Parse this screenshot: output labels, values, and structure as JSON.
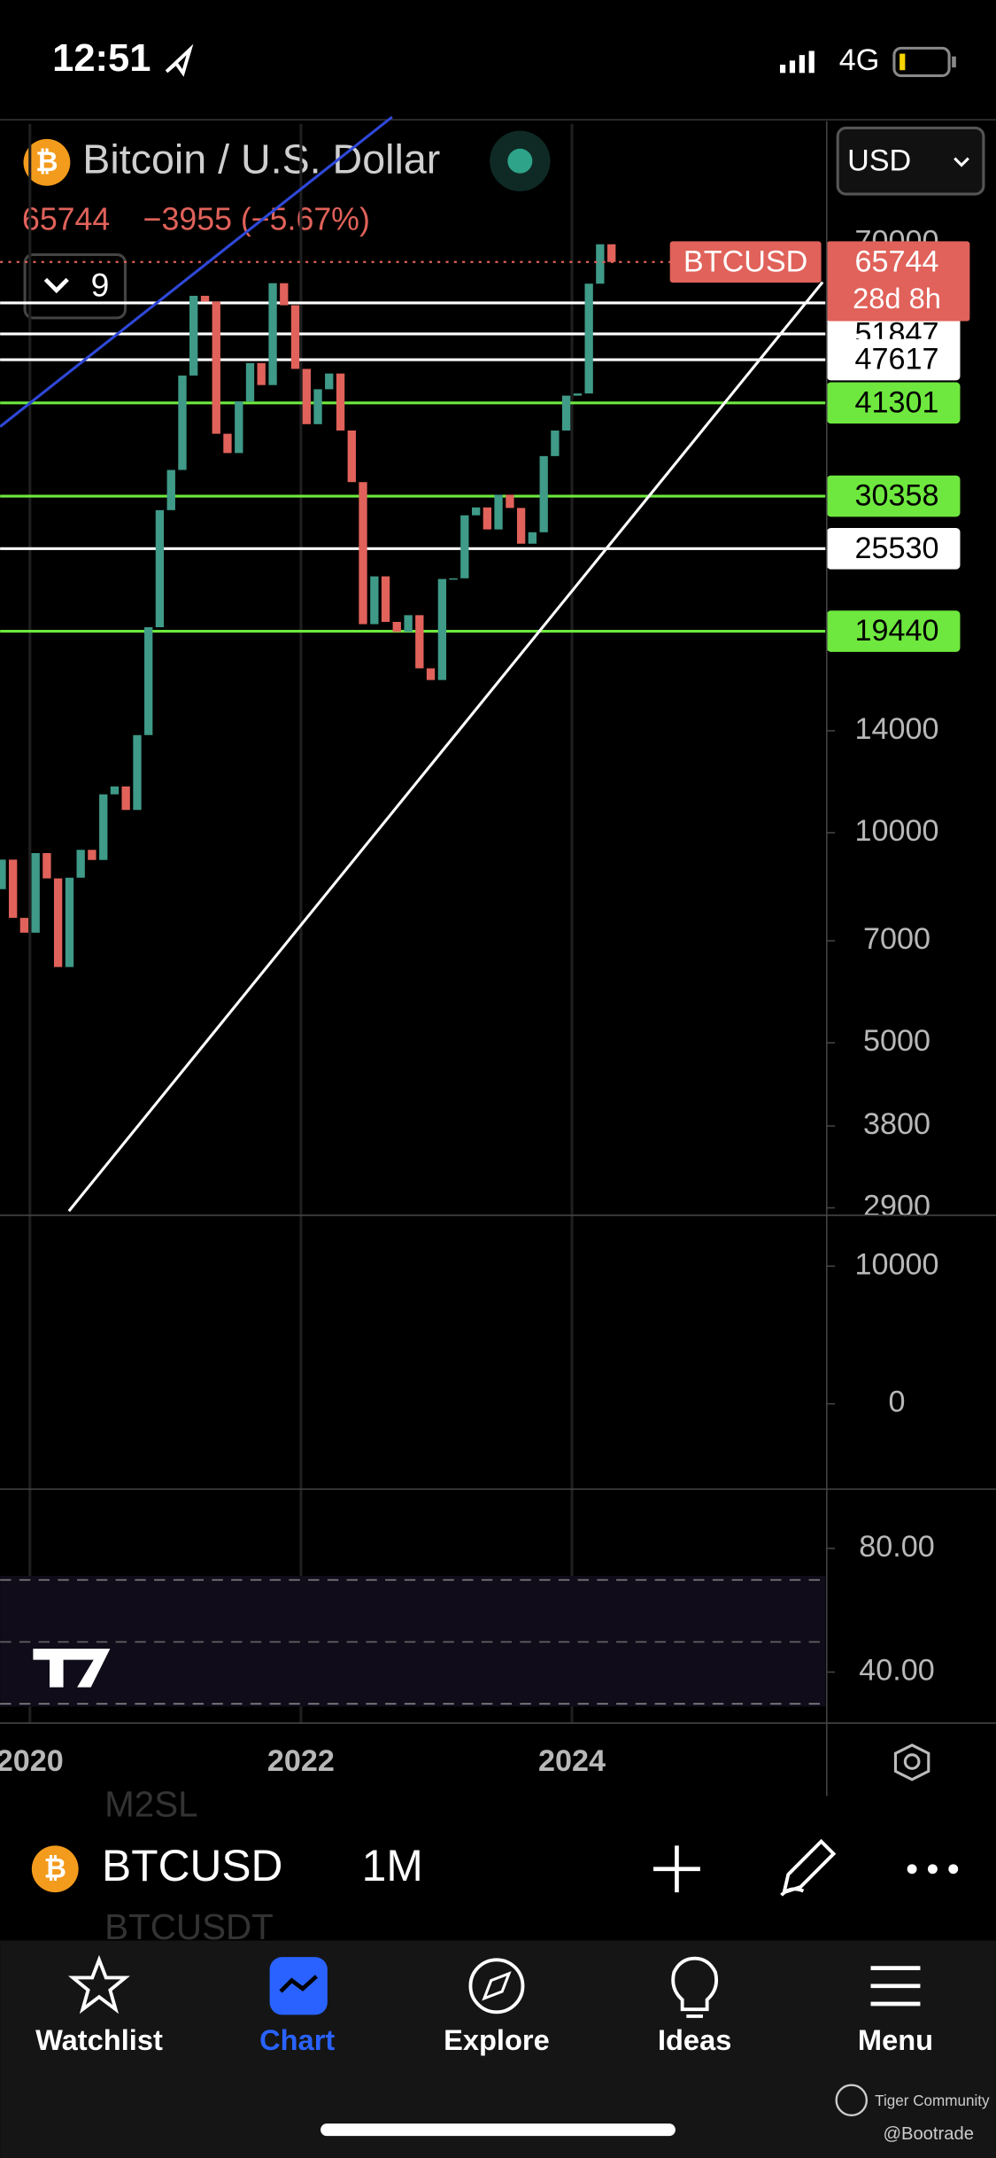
{
  "status_bar": {
    "time": "12:51",
    "network": "4G"
  },
  "header": {
    "icon": "₿",
    "symbol_title": "Bitcoin / U.S. Dollar",
    "last": "65744",
    "change": "−3955 (−5.67%)",
    "indicators_count": "9",
    "currency": "USD"
  },
  "chart_data": {
    "type": "candlestick",
    "log_scale": true,
    "grid": true,
    "up_color": "#3f9a88",
    "down_color": "#e0625a",
    "x": [
      2019.792,
      2019.875,
      2019.958,
      2020.042,
      2020.125,
      2020.208,
      2020.292,
      2020.375,
      2020.458,
      2020.542,
      2020.625,
      2020.708,
      2020.792,
      2020.875,
      2020.958,
      2021.042,
      2021.125,
      2021.208,
      2021.292,
      2021.375,
      2021.458,
      2021.542,
      2021.625,
      2021.708,
      2021.792,
      2021.875,
      2021.958,
      2022.042,
      2022.125,
      2022.208,
      2022.292,
      2022.375,
      2022.458,
      2022.542,
      2022.625,
      2022.708,
      2022.792,
      2022.875,
      2022.958,
      2023.042,
      2023.125,
      2023.208,
      2023.292,
      2023.375,
      2023.458,
      2023.542,
      2023.625,
      2023.708,
      2023.792,
      2023.875,
      2023.958,
      2024.042,
      2024.125,
      2024.208,
      2024.292
    ],
    "open": [
      8300,
      9150,
      7550,
      7190,
      9350,
      8600,
      6420,
      8620,
      9450,
      9140,
      11350,
      11650,
      10780,
      13800,
      19700,
      28990,
      33100,
      45200,
      58800,
      57700,
      37300,
      35000,
      41500,
      47100,
      43800,
      61300,
      57000,
      46200,
      38500,
      43200,
      45500,
      37700,
      31800,
      19900,
      23300,
      20050,
      19400,
      20500,
      17200,
      16550,
      23100,
      23150,
      28500,
      29250,
      27200,
      30500,
      29200,
      25950,
      26950,
      34650,
      37700,
      42300,
      42600,
      61200,
      69699
    ],
    "close": [
      9150,
      7550,
      7190,
      9350,
      8600,
      6420,
      8620,
      9450,
      9140,
      11350,
      11650,
      10780,
      13800,
      19700,
      28990,
      33100,
      45200,
      58800,
      57700,
      37300,
      35000,
      41500,
      47100,
      43800,
      61300,
      57000,
      46200,
      38500,
      43200,
      45500,
      37700,
      31800,
      19900,
      23300,
      20050,
      19400,
      20500,
      17200,
      16550,
      23100,
      23150,
      28500,
      29250,
      27200,
      30500,
      29200,
      25950,
      26950,
      34650,
      37700,
      42300,
      42600,
      61200,
      69699,
      65744
    ],
    "xlim": [
      2019.78,
      2025.87
    ],
    "xticks": [
      2020,
      2022,
      2024
    ],
    "ylim": [
      2869,
      103700
    ],
    "yticks": [
      70000,
      14000,
      10000,
      7000,
      5000,
      3800,
      2900
    ],
    "levels": [
      {
        "value": 57441,
        "color": "#ffffff"
      },
      {
        "value": 51847,
        "color": "#ffffff"
      },
      {
        "value": 47617,
        "color": "#ffffff"
      },
      {
        "value": 41301,
        "color": "#6ee83e"
      },
      {
        "value": 30358,
        "color": "#6ee83e"
      },
      {
        "value": 25530,
        "color": "#ffffff"
      },
      {
        "value": 19440,
        "color": "#6ee83e"
      }
    ],
    "last_price": {
      "value": 65744,
      "label": "BTCUSD",
      "countdown": "28d 8h"
    }
  },
  "macd_pane": {
    "ylim": [
      -6000,
      13500
    ],
    "yticks": [
      10000,
      0
    ]
  },
  "rsi_pane": {
    "ylim": [
      24.4,
      97.8
    ],
    "yticks": [
      {
        "value": 80,
        "label": "80.00"
      },
      {
        "value": 40,
        "label": "40.00"
      }
    ]
  },
  "toolbar": {
    "icon": "₿",
    "symbol": "BTCUSD",
    "interval": "1M",
    "ghost_items": [
      "M2SL",
      "BTCUSDT"
    ]
  },
  "tab_bar": {
    "tabs": [
      "Watchlist",
      "Chart",
      "Explore",
      "Ideas",
      "Menu"
    ],
    "active": 1
  },
  "watermark": {
    "brand": "Tiger Community",
    "handle": "@Bootrade"
  }
}
